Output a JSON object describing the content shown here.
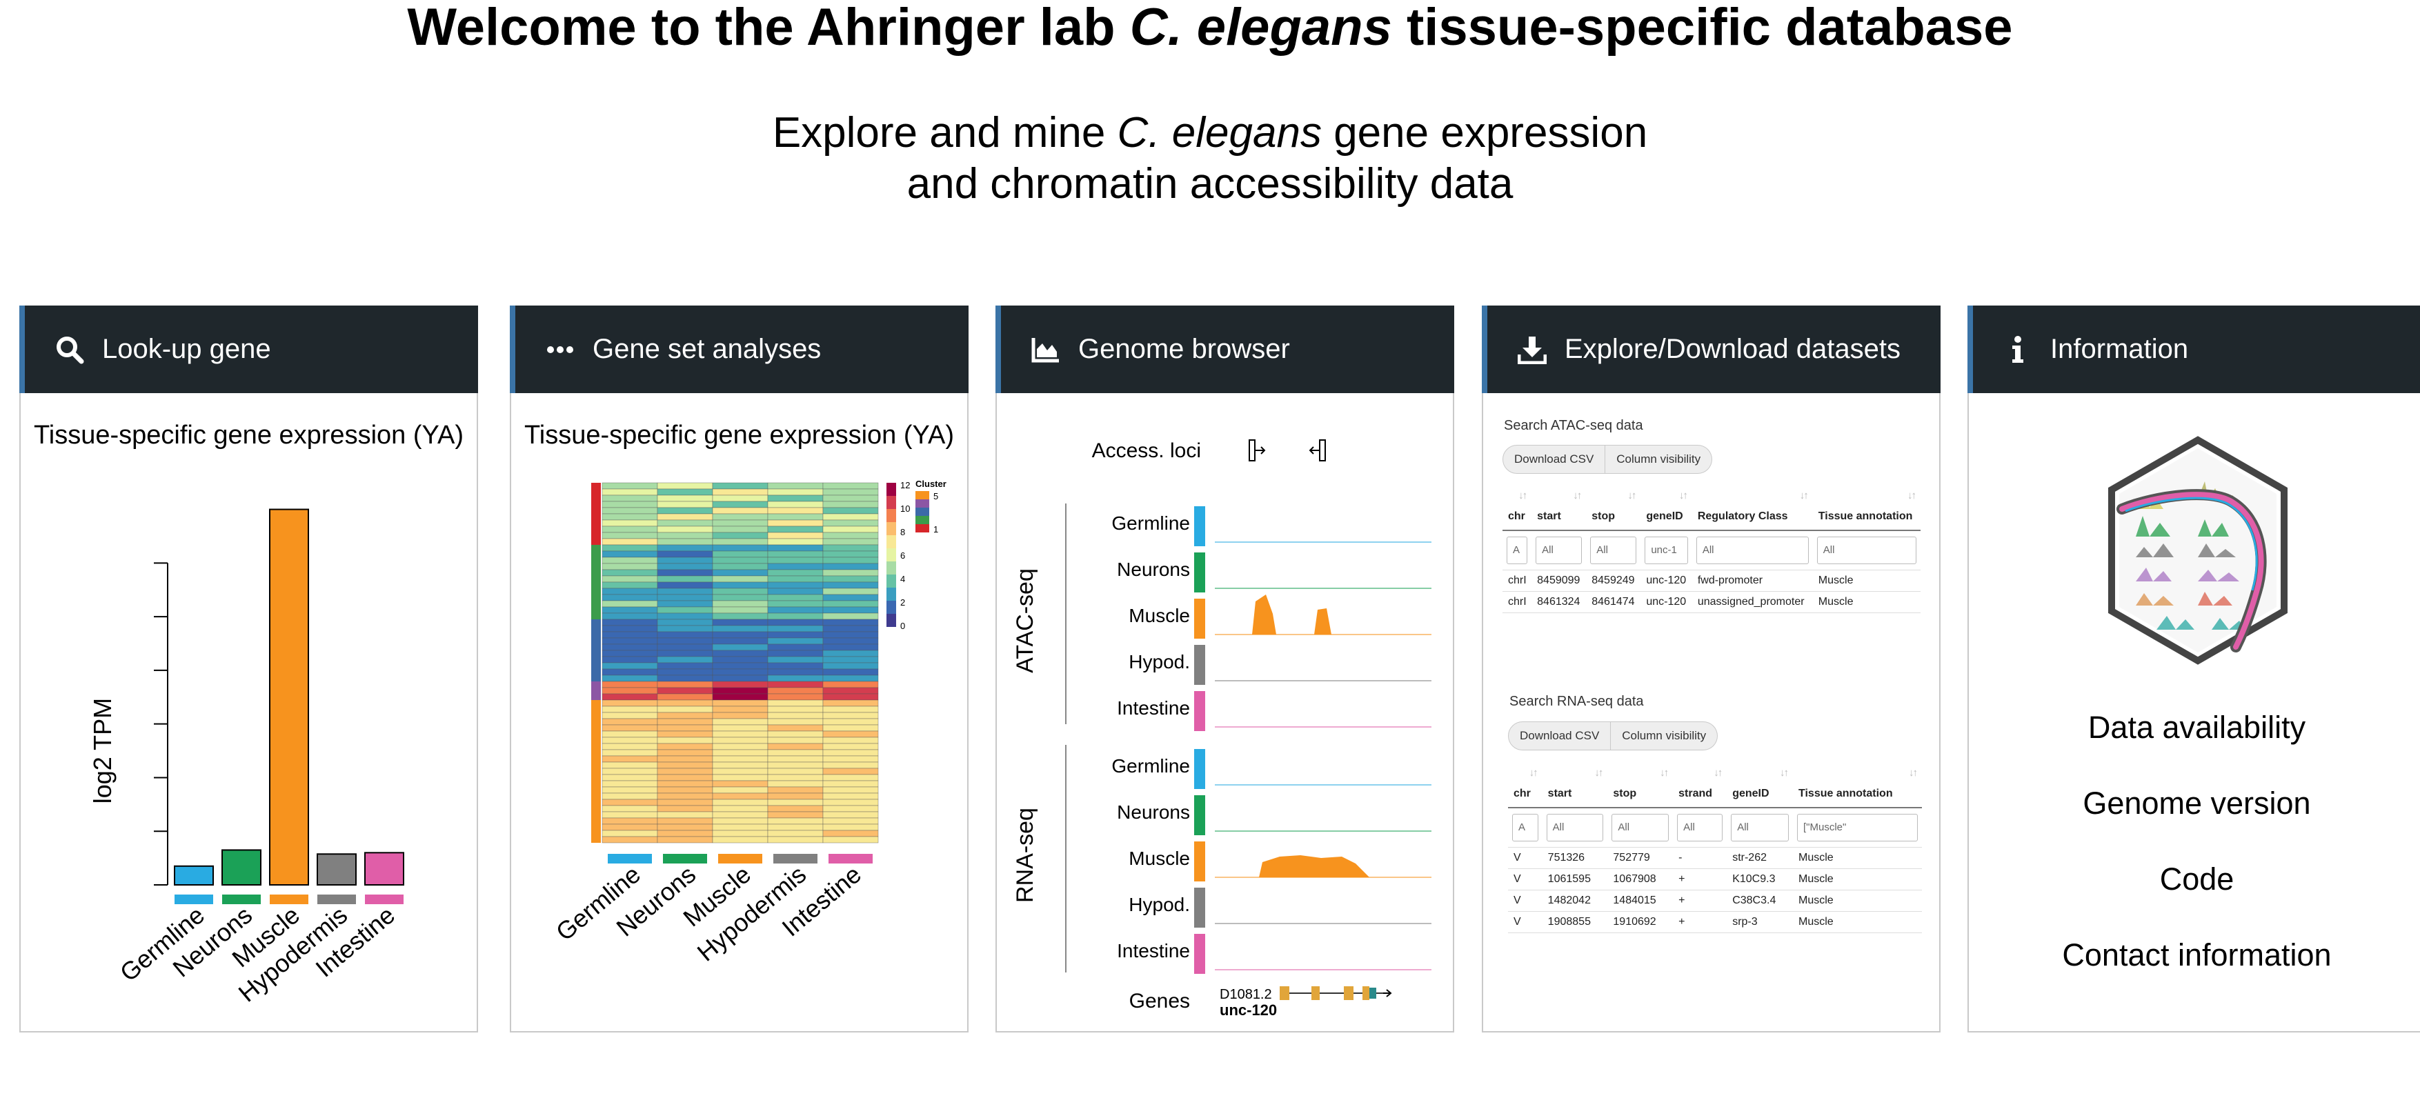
{
  "header": {
    "title_prefix": "Welcome to the Ahringer lab ",
    "title_species": "C. elegans",
    "title_suffix": " tissue-specific database",
    "subtitle_prefix": "Explore and mine ",
    "subtitle_species": "C. elegans",
    "subtitle_line1_suffix": " gene expression",
    "subtitle_line2": "and chromatin accessibility data"
  },
  "cards": {
    "lookup": {
      "label": "Look-up gene",
      "icon": "search-icon",
      "panel_title": "Tissue-specific gene expression (YA)",
      "ylabel": "log2 TPM"
    },
    "geneset": {
      "label": "Gene set analyses",
      "icon": "more-dots-icon",
      "panel_title": "Tissue-specific gene expression (YA)",
      "legend_title": "Cluster",
      "colorbar_ticks": [
        "12",
        "10",
        "8",
        "6",
        "4",
        "2",
        "0"
      ],
      "cluster_ticks": [
        "5",
        "1"
      ]
    },
    "browser": {
      "label": "Genome browser",
      "icon": "area-chart-icon",
      "access_loci": "Access. loci",
      "atac_label": "ATAC-seq",
      "rna_label": "RNA-seq",
      "tracks": [
        "Germline",
        "Neurons",
        "Muscle",
        "Hypod.",
        "Intestine"
      ],
      "genes_label": "Genes",
      "gene1": "D1081.2",
      "gene2": "unc-120"
    },
    "datasets": {
      "label": "Explore/Download datasets",
      "icon": "download-icon",
      "atac": {
        "search_label": "Search ATAC-seq data",
        "btn_csv": "Download CSV",
        "btn_cols": "Column visibility",
        "columns": [
          "chr",
          "start",
          "stop",
          "geneID",
          "Regulatory Class",
          "Tissue annotation"
        ],
        "filters": [
          "A",
          "All",
          "All",
          "unc-1",
          "All",
          "All"
        ],
        "rows": [
          [
            "chrI",
            "8459099",
            "8459249",
            "unc-120",
            "fwd-promoter",
            "Muscle"
          ],
          [
            "chrI",
            "8461324",
            "8461474",
            "unc-120",
            "unassigned_promoter",
            "Muscle"
          ]
        ]
      },
      "rna": {
        "search_label": "Search RNA-seq data",
        "btn_csv": "Download CSV",
        "btn_cols": "Column visibility",
        "columns": [
          "chr",
          "start",
          "stop",
          "strand",
          "geneID",
          "Tissue annotation"
        ],
        "filters": [
          "A",
          "All",
          "All",
          "All",
          "All",
          "[\"Muscle\""
        ],
        "rows": [
          [
            "V",
            "751326",
            "752779",
            "-",
            "str-262",
            "Muscle"
          ],
          [
            "V",
            "1061595",
            "1067908",
            "+",
            "K10C9.3",
            "Muscle"
          ],
          [
            "V",
            "1482042",
            "1484015",
            "+",
            "C38C3.4",
            "Muscle"
          ],
          [
            "V",
            "1908855",
            "1910692",
            "+",
            "srp-3",
            "Muscle"
          ]
        ]
      }
    },
    "info": {
      "label": "Information",
      "icon": "info-icon",
      "links": [
        "Data availability",
        "Genome version",
        "Code",
        "Contact information"
      ]
    }
  },
  "tissue_colors": {
    "Germline": "#29abe2",
    "Neurons": "#1ba157",
    "Muscle": "#f7931e",
    "Hypodermis": "#808080",
    "Intestine": "#e05ea8"
  },
  "chart_data": {
    "type": "bar",
    "categories": [
      "Germline",
      "Neurons",
      "Muscle",
      "Hypodermis",
      "Intestine"
    ],
    "values": [
      0.7,
      1.3,
      14.0,
      1.15,
      1.2
    ],
    "ylabel": "log2 TPM",
    "ylim": [
      0,
      14.4
    ],
    "yticks": [
      0,
      2,
      4,
      6,
      8,
      10,
      12
    ],
    "colors": [
      "#29abe2",
      "#1ba157",
      "#f7931e",
      "#808080",
      "#e05ea8"
    ]
  },
  "heatmap_data": {
    "columns": [
      "Germline",
      "Neurons",
      "Muscle",
      "Hypodermis",
      "Intestine"
    ]
  }
}
